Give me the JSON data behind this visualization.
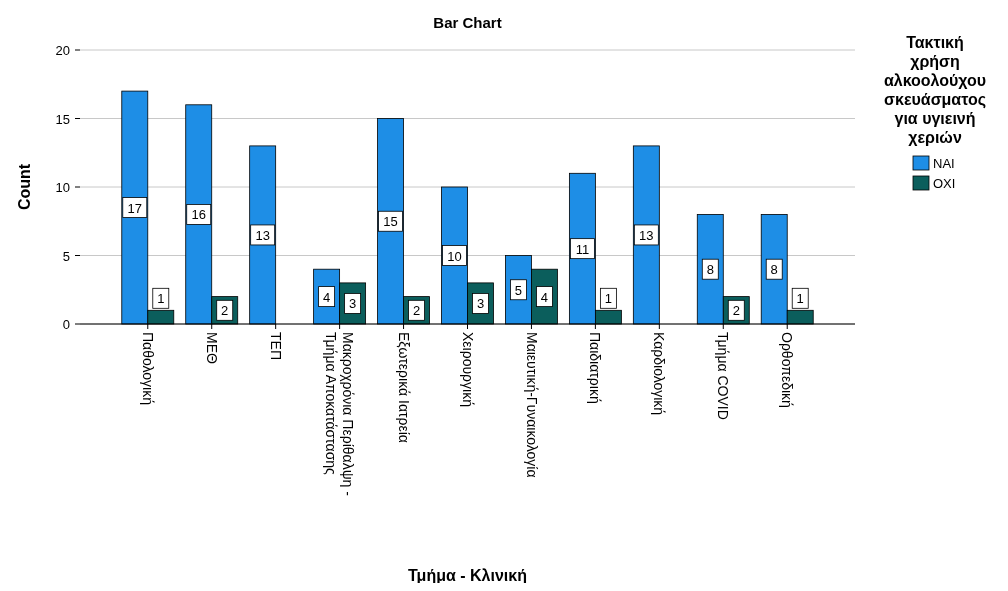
{
  "chart_data": {
    "type": "bar",
    "title": "Bar Chart",
    "xlabel": "Τμήμα - Κλινική",
    "ylabel": "Count",
    "legend_title": "Τακτική χρήση αλκοολούχου σκευάσματος για υγιεινή χεριών",
    "categories": [
      "Παθολογική",
      "ΜΕΘ",
      "ΤΕΠ",
      "Μακροχρόνια Περίθαλψη - Τμήμα Αποκατάστασης",
      "Εξωτερικά Ιατρεία",
      "Χειρουργική",
      "Μαιευτική-Γυναικολογία",
      "Παιδιατρική",
      "Καρδιολογική",
      "Τμήμα COVID",
      "Ορθοπεδική"
    ],
    "series": [
      {
        "name": "ΝΑΙ",
        "color": "#1e8ee6",
        "values": [
          17,
          16,
          13,
          4,
          15,
          10,
          5,
          11,
          13,
          8,
          8
        ]
      },
      {
        "name": "ΟΧΙ",
        "color": "#0b5e5c",
        "values": [
          1,
          2,
          null,
          3,
          2,
          3,
          4,
          1,
          null,
          2,
          1
        ]
      }
    ],
    "ylim": [
      0,
      20
    ],
    "yticks": [
      0,
      5,
      10,
      15,
      20
    ],
    "grid": "y",
    "legend": "right",
    "data_labels": true
  }
}
